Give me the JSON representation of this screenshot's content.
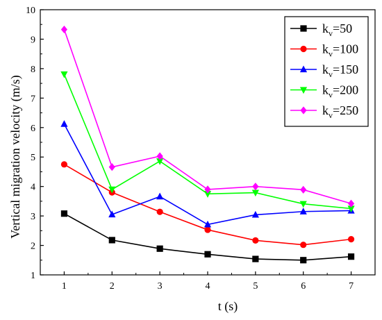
{
  "chart_data": {
    "type": "line",
    "title": "",
    "xlabel": "t (s)",
    "ylabel": "Vertical migration velocity (m/s)",
    "x": [
      1,
      2,
      3,
      4,
      5,
      6,
      7
    ],
    "xlim": [
      0.5,
      7.5
    ],
    "ylim": [
      1,
      10
    ],
    "xticks": [
      "1",
      "2",
      "3",
      "4",
      "5",
      "6",
      "7"
    ],
    "yticks": [
      "1",
      "2",
      "3",
      "4",
      "5",
      "6",
      "7",
      "8",
      "9",
      "10"
    ],
    "grid": false,
    "legend_position": "top-right",
    "series": [
      {
        "name_main": "k",
        "name_sub": "v",
        "name_value": "=50",
        "color": "#000000",
        "marker": "square",
        "values": [
          3.08,
          2.18,
          1.89,
          1.7,
          1.54,
          1.5,
          1.62
        ]
      },
      {
        "name_main": "k",
        "name_sub": "v",
        "name_value": "=100",
        "color": "#ff0000",
        "marker": "circle",
        "values": [
          4.75,
          3.8,
          3.14,
          2.53,
          2.17,
          2.02,
          2.21
        ]
      },
      {
        "name_main": "k",
        "name_sub": "v",
        "name_value": "=150",
        "color": "#0000ff",
        "marker": "triangle-up",
        "values": [
          6.12,
          3.05,
          3.66,
          2.71,
          3.04,
          3.15,
          3.18
        ]
      },
      {
        "name_main": "k",
        "name_sub": "v",
        "name_value": "=200",
        "color": "#00ff00",
        "marker": "triangle-down",
        "values": [
          7.81,
          3.9,
          4.86,
          3.75,
          3.79,
          3.41,
          3.25
        ]
      },
      {
        "name_main": "k",
        "name_sub": "v",
        "name_value": "=250",
        "color": "#ff00ff",
        "marker": "diamond",
        "values": [
          9.33,
          4.66,
          5.03,
          3.9,
          4.0,
          3.89,
          3.42
        ]
      }
    ]
  }
}
